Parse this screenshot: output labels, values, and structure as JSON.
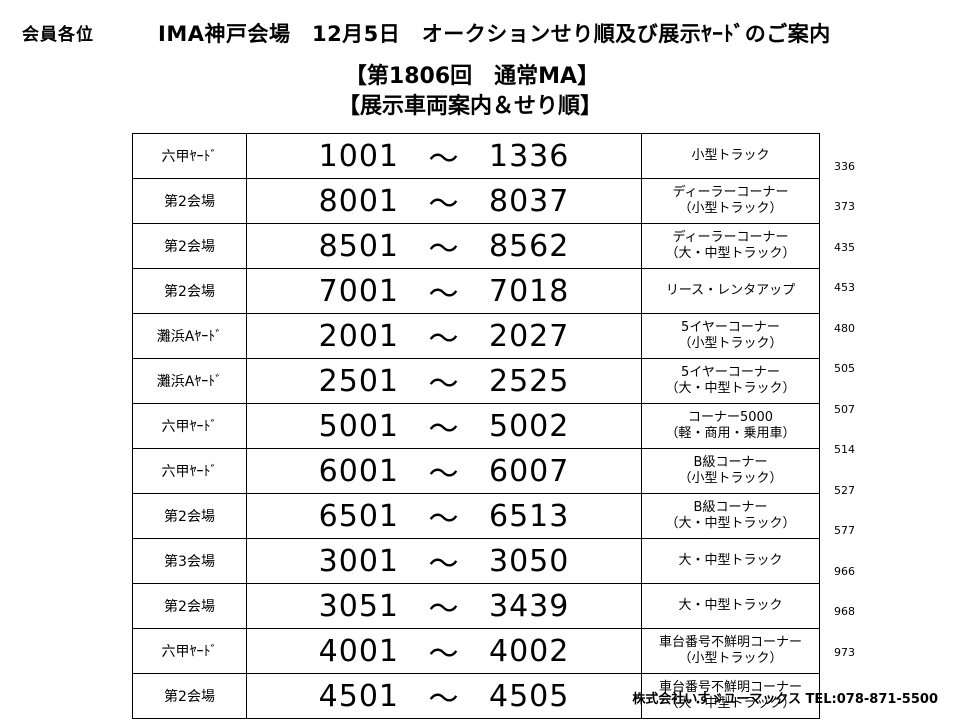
{
  "header": {
    "addressee": "会員各位",
    "title": "IMA神戸会場　12月5日　オークションせり順及び展示ﾔｰﾄﾞのご案内",
    "subtitle_line1": "【第1806回　通常MA】",
    "subtitle_line2": "【展示車両案内＆せり順】"
  },
  "table": {
    "rows": [
      {
        "venue": "六甲ﾔｰﾄﾞ",
        "from": "1001",
        "to": "1336",
        "category": [
          "小型トラック"
        ],
        "total": "336"
      },
      {
        "venue": "第2会場",
        "from": "8001",
        "to": "8037",
        "category": [
          "ディーラーコーナー",
          "（小型トラック）"
        ],
        "total": "373"
      },
      {
        "venue": "第2会場",
        "from": "8501",
        "to": "8562",
        "category": [
          "ディーラーコーナー",
          "（大・中型トラック）"
        ],
        "total": "435"
      },
      {
        "venue": "第2会場",
        "from": "7001",
        "to": "7018",
        "category": [
          "リース・レンタアップ"
        ],
        "total": "453"
      },
      {
        "venue": "灘浜Aﾔｰﾄﾞ",
        "from": "2001",
        "to": "2027",
        "category": [
          "5イヤーコーナー",
          "（小型トラック）"
        ],
        "total": "480"
      },
      {
        "venue": "灘浜Aﾔｰﾄﾞ",
        "from": "2501",
        "to": "2525",
        "category": [
          "5イヤーコーナー",
          "（大・中型トラック）"
        ],
        "total": "505"
      },
      {
        "venue": "六甲ﾔｰﾄﾞ",
        "from": "5001",
        "to": "5002",
        "category": [
          "コーナー5000",
          "（軽・商用・乗用車）"
        ],
        "total": "507"
      },
      {
        "venue": "六甲ﾔｰﾄﾞ",
        "from": "6001",
        "to": "6007",
        "category": [
          "B級コーナー",
          "（小型トラック）"
        ],
        "total": "514"
      },
      {
        "venue": "第2会場",
        "from": "6501",
        "to": "6513",
        "category": [
          "B級コーナー",
          "（大・中型トラック）"
        ],
        "total": "527"
      },
      {
        "venue": "第3会場",
        "from": "3001",
        "to": "3050",
        "category": [
          "大・中型トラック"
        ],
        "total": "577"
      },
      {
        "venue": "第2会場",
        "from": "3051",
        "to": "3439",
        "category": [
          "大・中型トラック"
        ],
        "total": "966"
      },
      {
        "venue": "六甲ﾔｰﾄﾞ",
        "from": "4001",
        "to": "4002",
        "category": [
          "車台番号不鮮明コーナー",
          "（小型トラック）"
        ],
        "total": "968"
      },
      {
        "venue": "第2会場",
        "from": "4501",
        "to": "4505",
        "category": [
          "車台番号不鮮明コーナー",
          "（大・中型トラック）"
        ],
        "total": "973"
      }
    ],
    "tilde": "～"
  },
  "footer": {
    "company": "株式会社いすゞユーマックス TEL:078-871-5500"
  }
}
